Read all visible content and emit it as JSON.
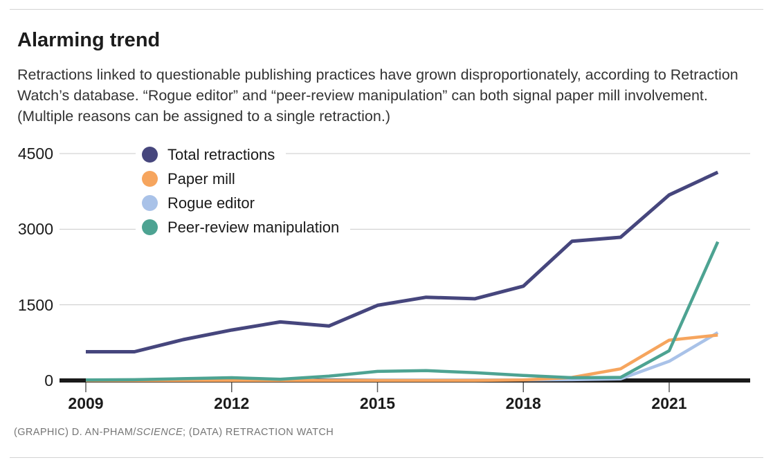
{
  "page": {
    "title": "Alarming trend",
    "subtitle": "Retractions linked to questionable publishing practices have grown disproportionately, according to Retraction Watch’s database. “Rogue editor” and “peer-review manipulation” can both signal paper mill involvement. (Multiple reasons can be assigned to a single retraction.)",
    "footer": {
      "prefix": "(GRAPHIC) D. AN-PHAM/",
      "italic": "SCIENCE",
      "suffix": "; (DATA) RETRACTION WATCH"
    }
  },
  "chart_data": {
    "type": "line",
    "title": "Alarming trend",
    "xlabel": "",
    "ylabel": "",
    "x": [
      2009,
      2010,
      2011,
      2012,
      2013,
      2014,
      2015,
      2016,
      2017,
      2018,
      2019,
      2020,
      2021,
      2022
    ],
    "series": [
      {
        "name": "Total retractions",
        "color": "#46467d",
        "values": [
          570,
          570,
          810,
          1000,
          1160,
          1080,
          1490,
          1650,
          1620,
          1870,
          2760,
          2840,
          3680,
          4130
        ]
      },
      {
        "name": "Paper mill",
        "color": "#f6a55e",
        "values": [
          0,
          0,
          0,
          0,
          0,
          0,
          0,
          0,
          0,
          10,
          60,
          230,
          800,
          900
        ]
      },
      {
        "name": "Rogue editor",
        "color": "#a9c2e8",
        "values": [
          5,
          5,
          5,
          5,
          5,
          5,
          10,
          10,
          10,
          10,
          15,
          30,
          380,
          950
        ]
      },
      {
        "name": "Peer-review manipulation",
        "color": "#4da392",
        "values": [
          10,
          15,
          35,
          55,
          25,
          85,
          180,
          195,
          155,
          100,
          55,
          60,
          590,
          2750
        ]
      }
    ],
    "draw_order": [
      2,
      1,
      3,
      0
    ],
    "xticks": [
      2009,
      2012,
      2015,
      2018,
      2021
    ],
    "yticks": [
      0,
      1500,
      3000,
      4500
    ],
    "ylim": [
      0,
      4500
    ],
    "grid": true,
    "legend_position": "top-left-inside",
    "colors": {
      "gridline": "#c9c9c9",
      "axis": "#1a1a1a",
      "tick": "#5a5a5a",
      "title_text": "#1c1c1c",
      "subtitle_text": "#333333",
      "footer_text": "#757575"
    }
  }
}
